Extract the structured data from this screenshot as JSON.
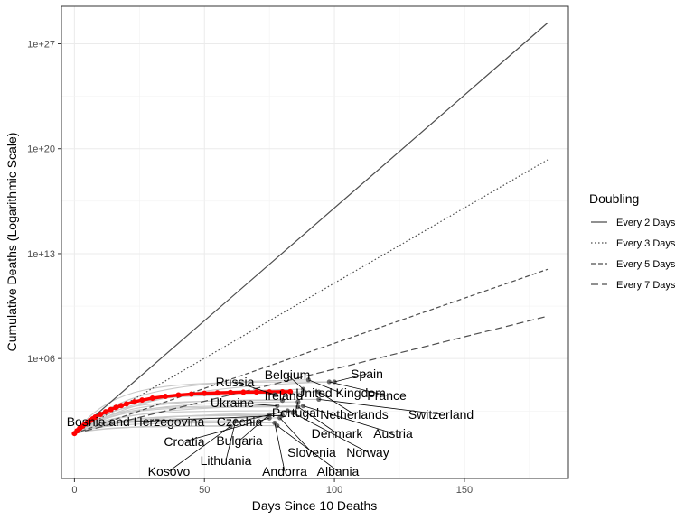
{
  "chart_data": {
    "type": "line",
    "title": "",
    "xlabel": "Days Since 10 Deaths",
    "ylabel": "Cumulative Deaths (Logarithmic Scale)",
    "y_scale": "log10",
    "xlim": [
      -5,
      190
    ],
    "ylim_log10": [
      -2.0,
      29.5
    ],
    "x_ticks": [
      0,
      50,
      100,
      150
    ],
    "y_ticks": [
      {
        "log10": 6,
        "label": "1e+06"
      },
      {
        "log10": 13,
        "label": "1e+13"
      },
      {
        "log10": 20,
        "label": "1e+20"
      },
      {
        "log10": 27,
        "label": "1e+27"
      }
    ],
    "grid": true,
    "legend": {
      "title": "Doubling",
      "position": "right",
      "entries": [
        {
          "label": "Every 2 Days",
          "days": 2,
          "dash": "solid"
        },
        {
          "label": "Every 3 Days",
          "days": 3,
          "dash": "dotted"
        },
        {
          "label": "Every 5 Days",
          "days": 5,
          "dash": "dashed"
        },
        {
          "label": "Every 7 Days",
          "days": 7,
          "dash": "longdash"
        }
      ]
    },
    "reference_lines": {
      "start_deaths": 10,
      "end_day": 182
    },
    "highlight_series": {
      "color": "#ff0000",
      "x": [
        0,
        1,
        2,
        3,
        4,
        5,
        6,
        7,
        8,
        10,
        12,
        14,
        16,
        18,
        20,
        23,
        26,
        30,
        35,
        40,
        45,
        50,
        55,
        60,
        65,
        70,
        75,
        80,
        83
      ],
      "y": [
        10,
        15,
        22,
        30,
        42,
        55,
        72,
        95,
        125,
        190,
        280,
        400,
        550,
        730,
        950,
        1300,
        1700,
        2300,
        3000,
        3700,
        4300,
        4800,
        5200,
        5500,
        5700,
        5900,
        6000,
        6100,
        6150
      ]
    },
    "countries": [
      {
        "name": "Spain",
        "last_x": 100,
        "last_y": 28000
      },
      {
        "name": "France",
        "last_x": 98,
        "last_y": 28000
      },
      {
        "name": "United Kingdom",
        "last_x": 90,
        "last_y": 38000
      },
      {
        "name": "Belgium",
        "last_x": 88,
        "last_y": 9000
      },
      {
        "name": "Ireland",
        "last_x": 80,
        "last_y": 1600
      },
      {
        "name": "Russia",
        "last_x": 77,
        "last_y": 4000
      },
      {
        "name": "Portugal",
        "last_x": 86,
        "last_y": 1300
      },
      {
        "name": "Ukraine",
        "last_x": 78,
        "last_y": 700
      },
      {
        "name": "Netherlands",
        "last_x": 94,
        "last_y": 6000
      },
      {
        "name": "Switzerland",
        "last_x": 94,
        "last_y": 1900
      },
      {
        "name": "Czechia",
        "last_x": 82,
        "last_y": 330
      },
      {
        "name": "Bosnia and Herzegovina",
        "last_x": 80,
        "last_y": 160
      },
      {
        "name": "Denmark",
        "last_x": 86,
        "last_y": 600
      },
      {
        "name": "Austria",
        "last_x": 88,
        "last_y": 690
      },
      {
        "name": "Bulgaria",
        "last_x": 75,
        "last_y": 180
      },
      {
        "name": "Croatia",
        "last_x": 75,
        "last_y": 107
      },
      {
        "name": "Slovenia",
        "last_x": 79,
        "last_y": 110
      },
      {
        "name": "Norway",
        "last_x": 84,
        "last_y": 240
      },
      {
        "name": "Lithuania",
        "last_x": 62,
        "last_y": 70
      },
      {
        "name": "Kosovo",
        "last_x": 60,
        "last_y": 30
      },
      {
        "name": "Andorra",
        "last_x": 77,
        "last_y": 51
      },
      {
        "name": "Albania",
        "last_x": 78,
        "last_y": 33
      }
    ]
  }
}
